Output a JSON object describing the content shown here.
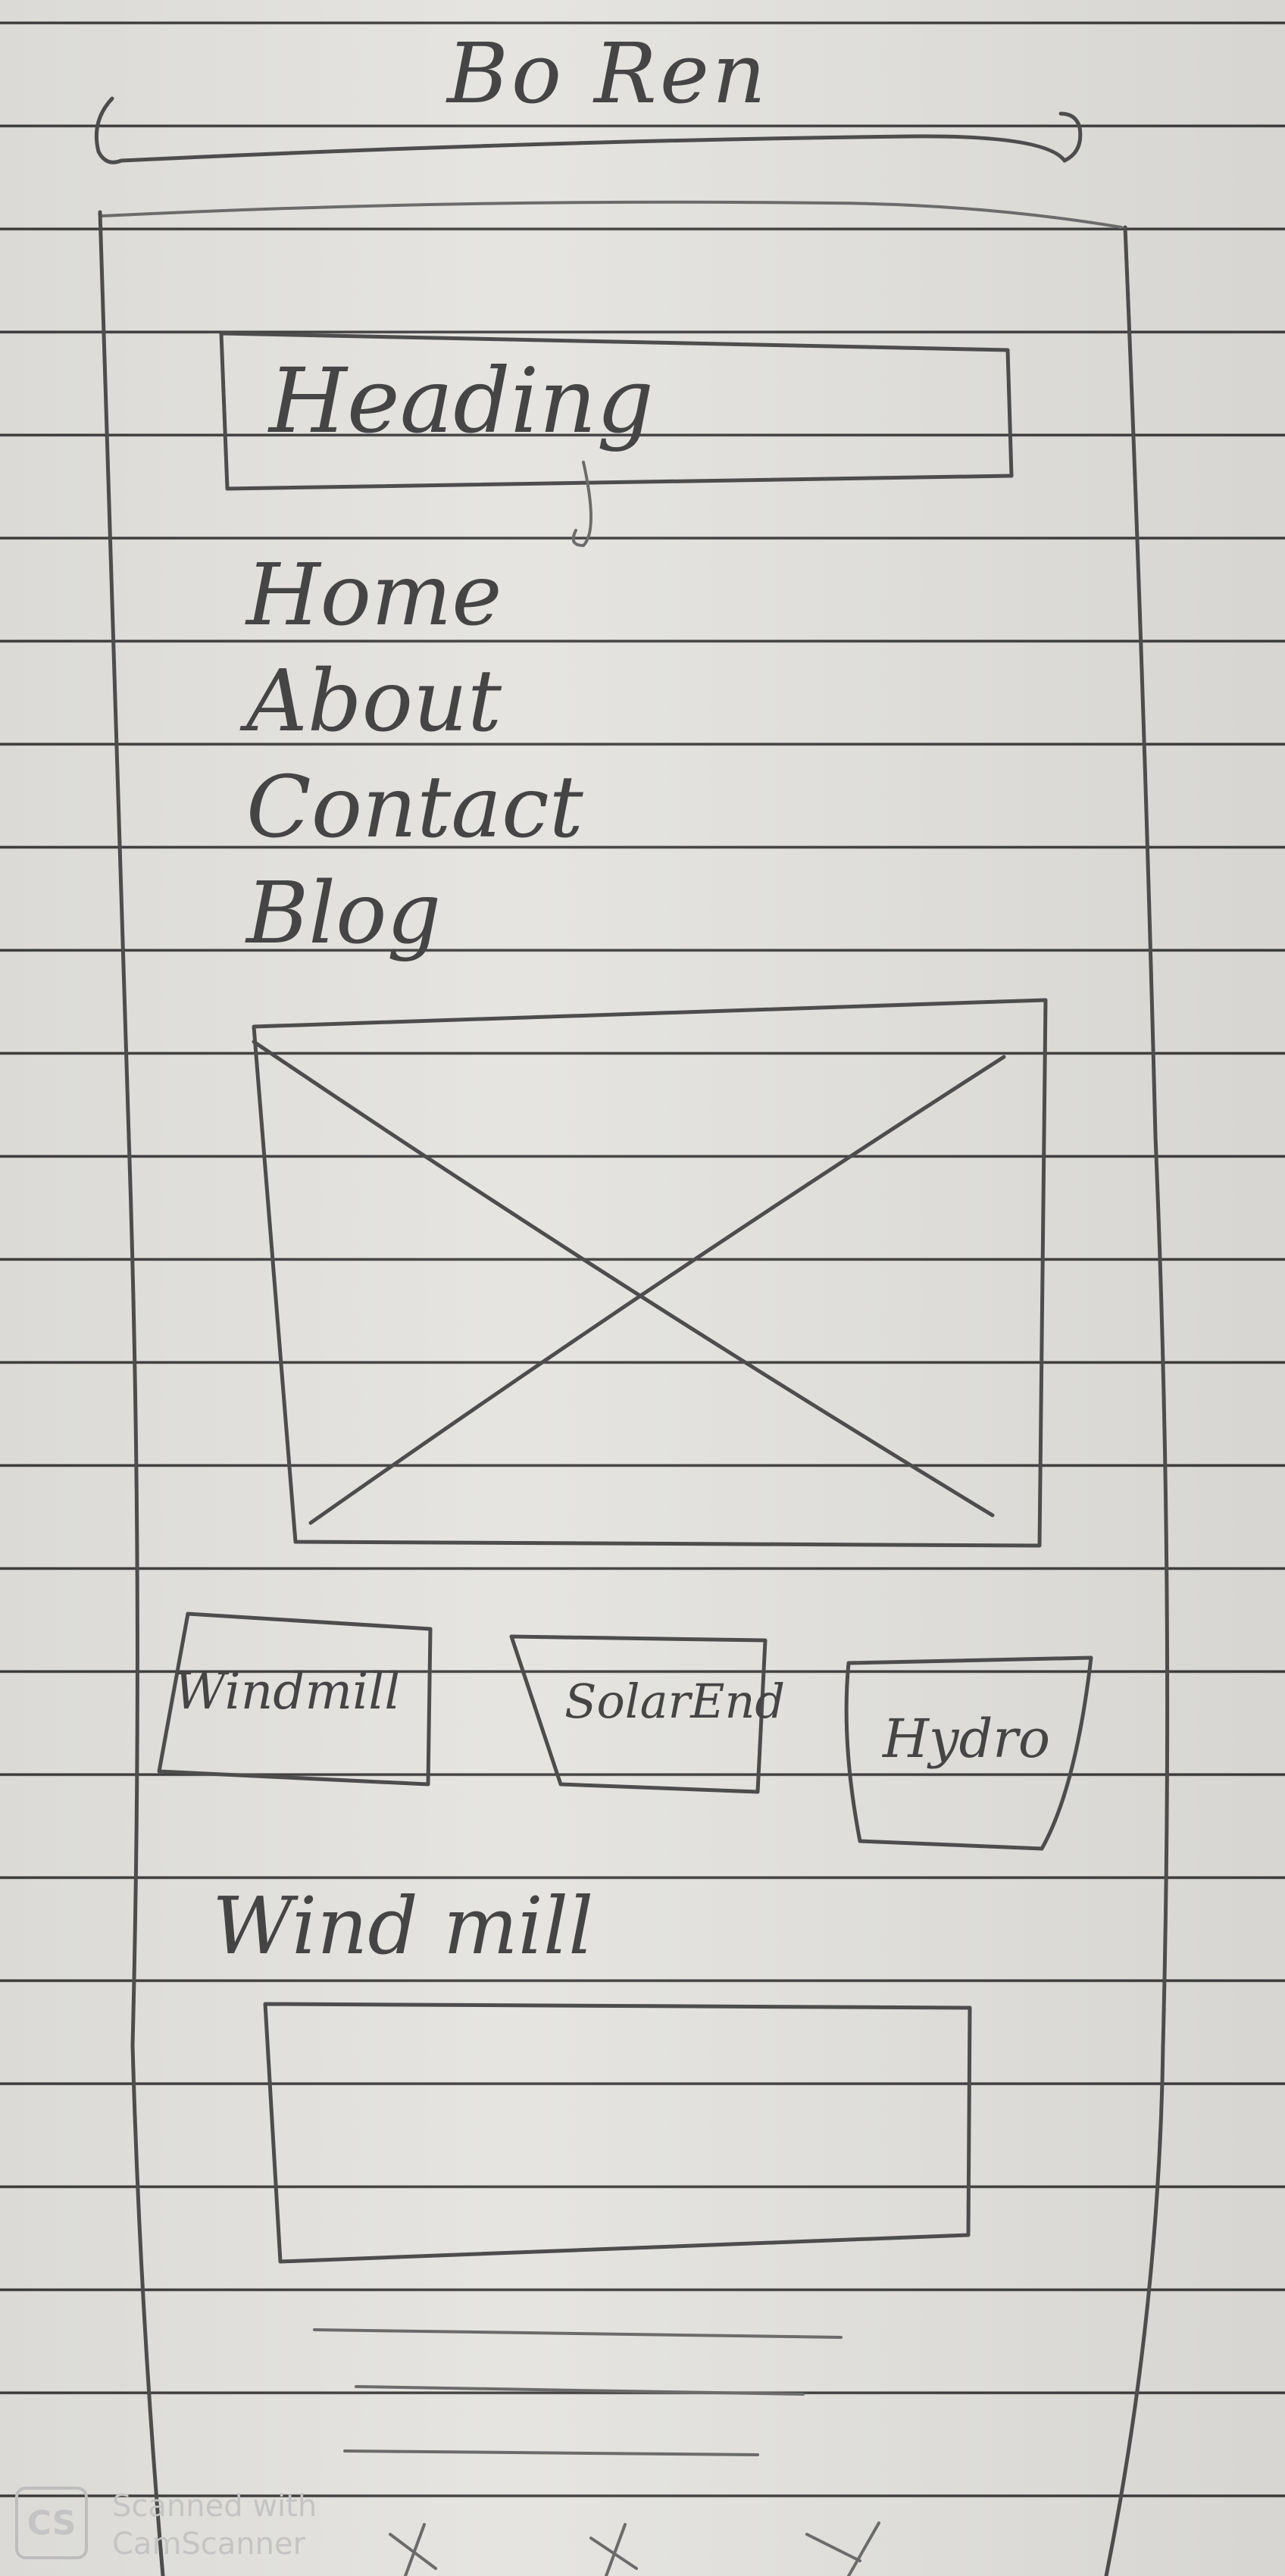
{
  "header": {
    "title": "Bo Ren"
  },
  "hero": {
    "heading": "Heading"
  },
  "nav": {
    "items": [
      {
        "label": "Home"
      },
      {
        "label": "About"
      },
      {
        "label": "Contact"
      },
      {
        "label": "Blog"
      }
    ]
  },
  "tabs": [
    {
      "label": "Windmill"
    },
    {
      "label": "SolarEnd"
    },
    {
      "label": "Hydro"
    }
  ],
  "section": {
    "title": "Wind mill"
  },
  "footer": {
    "icons": [
      "x-icon",
      "x-icon",
      "x-icon"
    ]
  },
  "watermark": {
    "badge": "CS",
    "line1": "Scanned with",
    "line2": "CamScanner"
  },
  "colors": {
    "paper": "#e4e3df",
    "pencil": "#4d4d4d",
    "ruled_line": "#3c3c3c"
  }
}
